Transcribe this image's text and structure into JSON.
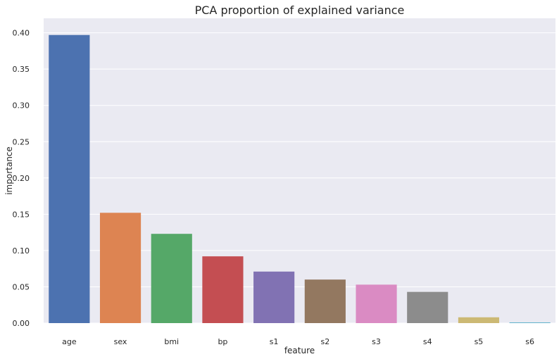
{
  "chart_data": {
    "type": "bar",
    "title": "PCA proportion of explained variance",
    "xlabel": "feature",
    "ylabel": "importance",
    "categories": [
      "age",
      "sex",
      "bmi",
      "bp",
      "s1",
      "s2",
      "s3",
      "s4",
      "s5",
      "s6"
    ],
    "values": [
      0.397,
      0.152,
      0.123,
      0.092,
      0.071,
      0.06,
      0.053,
      0.043,
      0.008,
      0.001
    ],
    "ylim": [
      0,
      0.42
    ],
    "yticks": [
      0.0,
      0.05,
      0.1,
      0.15,
      0.2,
      0.25,
      0.3,
      0.35,
      0.4
    ],
    "ytick_labels": [
      "0.00",
      "0.05",
      "0.10",
      "0.15",
      "0.20",
      "0.25",
      "0.30",
      "0.35",
      "0.40"
    ],
    "grid": true,
    "colors": [
      "#4c72b0",
      "#dd8452",
      "#55a868",
      "#c44e52",
      "#8172b3",
      "#937860",
      "#da8bc3",
      "#8c8c8c",
      "#ccb974",
      "#64b5cd"
    ],
    "background": "#eaeaf2"
  }
}
